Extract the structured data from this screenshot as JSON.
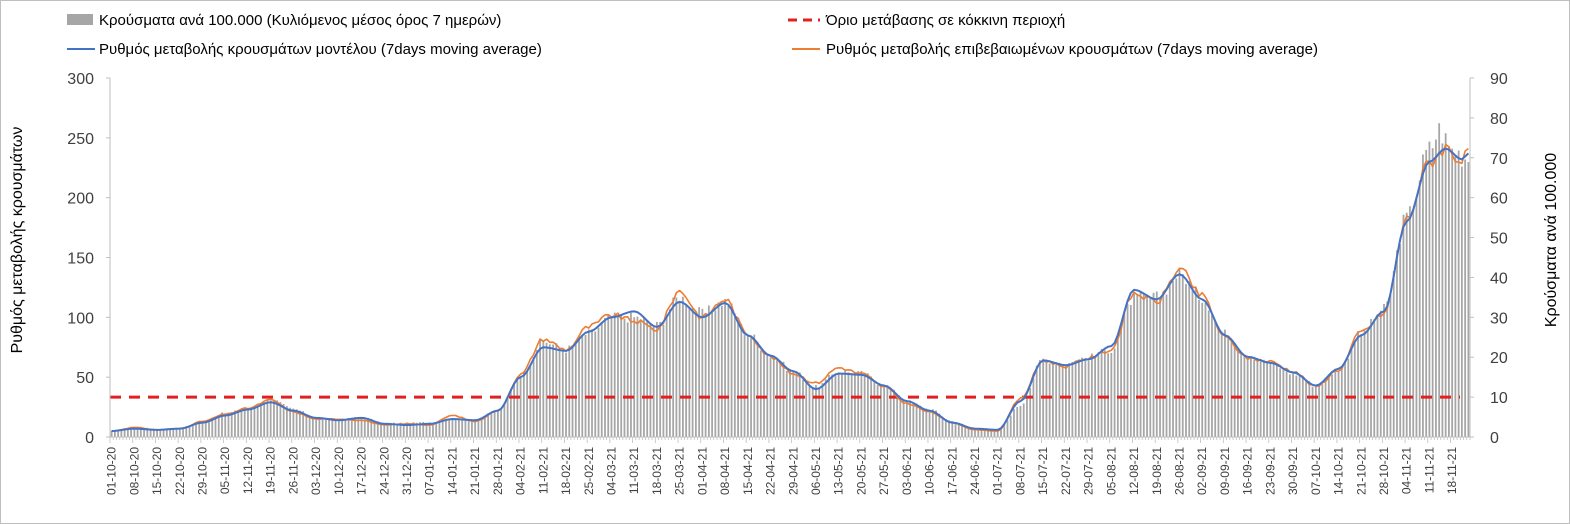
{
  "chart_data": {
    "type": "bar",
    "title": "",
    "legend": {
      "placement": "top",
      "entries": [
        {
          "key": "bars",
          "label": "Κρούσματα ανά 100.000 (Κυλιόμενος μέσος όρος 7 ημερών)"
        },
        {
          "key": "threshold",
          "label": "Όριο μετάβασης σε κόκκινη περιοχή"
        },
        {
          "key": "model",
          "label": "Ρυθμός μεταβολής κρουσμάτων μοντέλου (7days moving average)"
        },
        {
          "key": "confirmed",
          "label": "Ρυθμός μεταβολής επιβεβαιωμένων κρουσμάτων (7days moving average)"
        }
      ]
    },
    "ylabel_left": "Ρυθμός μεταβολής κρουσμάτων",
    "ylabel_right": "Κρούσματα ανά 100.000",
    "ylim_left": [
      0,
      300
    ],
    "yticks_left": [
      "0",
      "50",
      "100",
      "150",
      "200",
      "250",
      "300"
    ],
    "ylim_right": [
      0,
      90
    ],
    "yticks_right": [
      "0",
      "10",
      "20",
      "30",
      "40",
      "50",
      "60",
      "70",
      "80",
      "90"
    ],
    "x_start": "2020-10-01",
    "x_end": "2021-11-23",
    "x_tick_labels": [
      "01-10-20",
      "08-10-20",
      "15-10-20",
      "22-10-20",
      "29-10-20",
      "05-11-20",
      "12-11-20",
      "19-11-20",
      "26-11-20",
      "03-12-20",
      "10-12-20",
      "17-12-20",
      "24-12-20",
      "31-12-20",
      "07-01-21",
      "14-01-21",
      "21-01-21",
      "28-01-21",
      "04-02-21",
      "11-02-21",
      "18-02-21",
      "25-02-21",
      "04-03-21",
      "11-03-21",
      "18-03-21",
      "25-03-21",
      "01-04-21",
      "08-04-21",
      "15-04-21",
      "22-04-21",
      "29-04-21",
      "06-05-21",
      "13-05-21",
      "20-05-21",
      "27-05-21",
      "03-06-21",
      "10-06-21",
      "17-06-21",
      "24-06-21",
      "01-07-21",
      "08-07-21",
      "15-07-21",
      "22-07-21",
      "29-07-21",
      "05-08-21",
      "12-08-21",
      "19-08-21",
      "26-08-21",
      "02-09-21",
      "09-09-21",
      "16-09-21",
      "23-09-21",
      "30-09-21",
      "07-10-21",
      "14-10-21",
      "21-10-21",
      "28-10-21",
      "04-11-21",
      "11-11-21",
      "18-11-21"
    ],
    "threshold_value": 10,
    "threshold_axis": "right",
    "series": [
      {
        "key": "bars",
        "type": "bar",
        "axis": "right",
        "color": "#a6a6a6",
        "keypoints": [
          [
            "2020-10-01",
            1.5
          ],
          [
            "2020-10-08",
            2.5
          ],
          [
            "2020-10-15",
            2
          ],
          [
            "2020-10-22",
            2.3
          ],
          [
            "2020-10-29",
            4
          ],
          [
            "2020-11-05",
            6
          ],
          [
            "2020-11-12",
            7
          ],
          [
            "2020-11-19",
            9.5
          ],
          [
            "2020-11-26",
            7
          ],
          [
            "2020-12-03",
            5
          ],
          [
            "2020-12-10",
            4.3
          ],
          [
            "2020-12-17",
            5
          ],
          [
            "2020-12-24",
            3.5
          ],
          [
            "2020-12-31",
            3.5
          ],
          [
            "2021-01-07",
            3.7
          ],
          [
            "2021-01-14",
            4.5
          ],
          [
            "2021-01-21",
            4.5
          ],
          [
            "2021-01-28",
            6.5
          ],
          [
            "2021-02-04",
            15.5
          ],
          [
            "2021-02-11",
            24
          ],
          [
            "2021-02-18",
            22
          ],
          [
            "2021-02-25",
            26
          ],
          [
            "2021-03-04",
            30
          ],
          [
            "2021-03-11",
            30
          ],
          [
            "2021-03-18",
            28
          ],
          [
            "2021-03-25",
            35
          ],
          [
            "2021-04-01",
            31
          ],
          [
            "2021-04-08",
            34
          ],
          [
            "2021-04-15",
            26
          ],
          [
            "2021-04-22",
            20.5
          ],
          [
            "2021-04-29",
            16.5
          ],
          [
            "2021-05-06",
            12.5
          ],
          [
            "2021-05-13",
            16.5
          ],
          [
            "2021-05-20",
            16
          ],
          [
            "2021-05-27",
            13
          ],
          [
            "2021-06-03",
            9
          ],
          [
            "2021-06-10",
            7
          ],
          [
            "2021-06-17",
            4
          ],
          [
            "2021-06-24",
            2
          ],
          [
            "2021-07-01",
            2
          ],
          [
            "2021-07-08",
            8
          ],
          [
            "2021-07-15",
            19.5
          ],
          [
            "2021-07-22",
            18.5
          ],
          [
            "2021-07-29",
            20
          ],
          [
            "2021-08-05",
            22
          ],
          [
            "2021-08-12",
            35
          ],
          [
            "2021-08-19",
            35
          ],
          [
            "2021-08-26",
            41
          ],
          [
            "2021-09-02",
            35
          ],
          [
            "2021-09-09",
            26
          ],
          [
            "2021-09-16",
            20.5
          ],
          [
            "2021-09-23",
            18.5
          ],
          [
            "2021-09-30",
            16
          ],
          [
            "2021-10-07",
            13
          ],
          [
            "2021-10-14",
            17
          ],
          [
            "2021-10-21",
            26
          ],
          [
            "2021-10-28",
            32
          ],
          [
            "2021-11-04",
            55
          ],
          [
            "2021-11-11",
            72
          ],
          [
            "2021-11-14",
            77
          ],
          [
            "2021-11-18",
            72
          ],
          [
            "2021-11-23",
            70
          ]
        ]
      },
      {
        "key": "model",
        "type": "line",
        "axis": "left",
        "color": "#4472c4",
        "keypoints": [
          [
            "2020-10-01",
            5
          ],
          [
            "2020-10-08",
            7
          ],
          [
            "2020-10-15",
            6
          ],
          [
            "2020-10-22",
            7
          ],
          [
            "2020-10-29",
            12
          ],
          [
            "2020-11-05",
            18
          ],
          [
            "2020-11-12",
            23
          ],
          [
            "2020-11-19",
            29
          ],
          [
            "2020-11-26",
            22
          ],
          [
            "2020-12-03",
            16
          ],
          [
            "2020-12-10",
            14
          ],
          [
            "2020-12-17",
            16
          ],
          [
            "2020-12-24",
            11
          ],
          [
            "2020-12-31",
            10
          ],
          [
            "2021-01-07",
            11
          ],
          [
            "2021-01-14",
            15
          ],
          [
            "2021-01-21",
            14
          ],
          [
            "2021-01-28",
            22
          ],
          [
            "2021-02-04",
            50
          ],
          [
            "2021-02-11",
            75
          ],
          [
            "2021-02-18",
            72
          ],
          [
            "2021-02-25",
            88
          ],
          [
            "2021-03-04",
            100
          ],
          [
            "2021-03-11",
            105
          ],
          [
            "2021-03-18",
            92
          ],
          [
            "2021-03-25",
            113
          ],
          [
            "2021-04-01",
            100
          ],
          [
            "2021-04-08",
            112
          ],
          [
            "2021-04-15",
            85
          ],
          [
            "2021-04-22",
            68
          ],
          [
            "2021-04-29",
            55
          ],
          [
            "2021-05-06",
            40
          ],
          [
            "2021-05-13",
            53
          ],
          [
            "2021-05-20",
            52
          ],
          [
            "2021-05-27",
            43
          ],
          [
            "2021-06-03",
            30
          ],
          [
            "2021-06-10",
            22
          ],
          [
            "2021-06-17",
            12
          ],
          [
            "2021-06-24",
            7
          ],
          [
            "2021-07-01",
            6
          ],
          [
            "2021-07-08",
            30
          ],
          [
            "2021-07-15",
            64
          ],
          [
            "2021-07-22",
            60
          ],
          [
            "2021-07-29",
            65
          ],
          [
            "2021-08-05",
            76
          ],
          [
            "2021-08-12",
            123
          ],
          [
            "2021-08-19",
            115
          ],
          [
            "2021-08-26",
            136
          ],
          [
            "2021-09-02",
            115
          ],
          [
            "2021-09-09",
            85
          ],
          [
            "2021-09-16",
            67
          ],
          [
            "2021-09-23",
            62
          ],
          [
            "2021-09-30",
            54
          ],
          [
            "2021-10-07",
            43
          ],
          [
            "2021-10-14",
            57
          ],
          [
            "2021-10-21",
            85
          ],
          [
            "2021-10-28",
            105
          ],
          [
            "2021-11-04",
            180
          ],
          [
            "2021-11-11",
            230
          ],
          [
            "2021-11-16",
            241
          ],
          [
            "2021-11-21",
            232
          ],
          [
            "2021-11-23",
            237
          ]
        ]
      },
      {
        "key": "confirmed",
        "type": "line",
        "axis": "left",
        "color": "#ed7d31",
        "keypoints": [
          [
            "2020-10-01",
            5
          ],
          [
            "2020-10-08",
            8
          ],
          [
            "2020-10-15",
            6
          ],
          [
            "2020-10-22",
            7
          ],
          [
            "2020-10-29",
            13
          ],
          [
            "2020-11-05",
            19
          ],
          [
            "2020-11-12",
            24
          ],
          [
            "2020-11-19",
            31
          ],
          [
            "2020-11-26",
            21
          ],
          [
            "2020-12-03",
            15
          ],
          [
            "2020-12-10",
            15
          ],
          [
            "2020-12-17",
            14
          ],
          [
            "2020-12-24",
            10
          ],
          [
            "2020-12-31",
            11
          ],
          [
            "2021-01-07",
            10
          ],
          [
            "2021-01-14",
            18
          ],
          [
            "2021-01-21",
            13
          ],
          [
            "2021-01-28",
            22
          ],
          [
            "2021-02-04",
            52
          ],
          [
            "2021-02-11",
            82
          ],
          [
            "2021-02-18",
            73
          ],
          [
            "2021-02-25",
            92
          ],
          [
            "2021-03-04",
            102
          ],
          [
            "2021-03-11",
            97
          ],
          [
            "2021-03-18",
            90
          ],
          [
            "2021-03-25",
            122
          ],
          [
            "2021-04-01",
            100
          ],
          [
            "2021-04-08",
            115
          ],
          [
            "2021-04-15",
            86
          ],
          [
            "2021-04-22",
            67
          ],
          [
            "2021-04-29",
            53
          ],
          [
            "2021-05-06",
            45
          ],
          [
            "2021-05-13",
            58
          ],
          [
            "2021-05-20",
            53
          ],
          [
            "2021-05-27",
            42
          ],
          [
            "2021-06-03",
            28
          ],
          [
            "2021-06-10",
            21
          ],
          [
            "2021-06-17",
            12
          ],
          [
            "2021-06-24",
            6
          ],
          [
            "2021-07-01",
            5
          ],
          [
            "2021-07-08",
            32
          ],
          [
            "2021-07-15",
            64
          ],
          [
            "2021-07-22",
            59
          ],
          [
            "2021-07-29",
            66
          ],
          [
            "2021-08-05",
            73
          ],
          [
            "2021-08-12",
            120
          ],
          [
            "2021-08-19",
            113
          ],
          [
            "2021-08-26",
            140
          ],
          [
            "2021-09-02",
            118
          ],
          [
            "2021-09-09",
            83
          ],
          [
            "2021-09-16",
            66
          ],
          [
            "2021-09-23",
            63
          ],
          [
            "2021-09-30",
            55
          ],
          [
            "2021-10-07",
            42
          ],
          [
            "2021-10-14",
            56
          ],
          [
            "2021-10-21",
            88
          ],
          [
            "2021-10-28",
            103
          ],
          [
            "2021-11-04",
            182
          ],
          [
            "2021-11-11",
            230
          ],
          [
            "2021-11-16",
            242
          ],
          [
            "2021-11-21",
            231
          ],
          [
            "2021-11-23",
            236
          ]
        ]
      }
    ],
    "threshold_color": "#e32020",
    "grid": false
  }
}
